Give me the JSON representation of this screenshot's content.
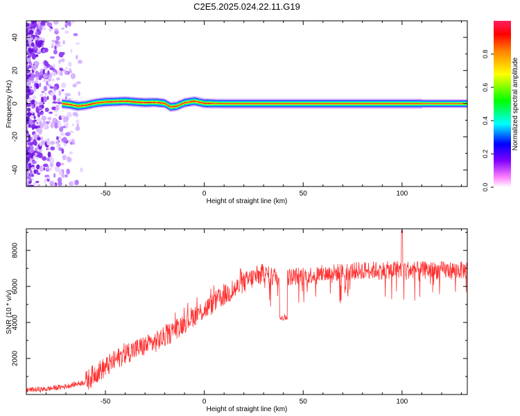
{
  "figure": {
    "title": "C2E5.2025.024.22.11.G19"
  },
  "chart_data": [
    {
      "type": "heatmap",
      "xlabel": "Height of straight line (km)",
      "ylabel": "Frequency (Hz)",
      "xlim": [
        -90,
        133
      ],
      "ylim": [
        -50,
        50
      ],
      "x_ticks": [
        -50,
        0,
        50,
        100
      ],
      "y_ticks": [
        -40,
        -20,
        0,
        20,
        40
      ],
      "x_tick_labels": [
        "-50",
        "0",
        "50",
        "100"
      ],
      "y_tick_labels": [
        "-40",
        "-20",
        "0",
        "20",
        "40"
      ],
      "colorbar": {
        "label": "Normalized spectral amplitude",
        "range": [
          0.0,
          1.0
        ],
        "ticks": [
          0.0,
          0.2,
          0.4,
          0.6,
          0.8
        ],
        "tick_labels": [
          "0.0",
          "0.2",
          "0.4",
          "0.6",
          "0.8"
        ],
        "colors": [
          "#ffffff",
          "#ff00ff",
          "#0000ff",
          "#00ffff",
          "#00ff00",
          "#ffff00",
          "#ff0000",
          "#ff0000"
        ]
      },
      "noise_region_x": [
        -90,
        -62
      ],
      "band_center_hz": [
        [
          -72,
          0
        ],
        [
          -68,
          -0.5
        ],
        [
          -64,
          -1.5
        ],
        [
          -60,
          -1
        ],
        [
          -55,
          0.3
        ],
        [
          -50,
          1
        ],
        [
          -45,
          1.2
        ],
        [
          -40,
          1.5
        ],
        [
          -35,
          1
        ],
        [
          -30,
          0.6
        ],
        [
          -25,
          0.8
        ],
        [
          -20,
          0.2
        ],
        [
          -17,
          -2
        ],
        [
          -14,
          -1.5
        ],
        [
          -10,
          0.5
        ],
        [
          -5,
          1.5
        ],
        [
          0,
          0.2
        ],
        [
          10,
          0
        ],
        [
          50,
          0
        ],
        [
          133,
          0
        ]
      ]
    },
    {
      "type": "line",
      "xlabel": "Height of straight line (km)",
      "ylabel": "SNR (10 * v/v)",
      "xlim": [
        -90,
        133
      ],
      "ylim": [
        0,
        9200
      ],
      "x_ticks": [
        -50,
        0,
        50,
        100
      ],
      "y_ticks": [
        2000,
        4000,
        6000,
        8000
      ],
      "x_tick_labels": [
        "-50",
        "0",
        "50",
        "100"
      ],
      "y_tick_labels": [
        "2000",
        "4000",
        "6000",
        "8000"
      ],
      "series": [
        {
          "color": "#ff3030",
          "trend": {
            "x": [
              -90,
              -80,
              -70,
              -60,
              -55,
              -50,
              -45,
              -40,
              -35,
              -30,
              -25,
              -20,
              -15,
              -10,
              -5,
              0,
              5,
              10,
              15,
              20,
              25,
              30,
              40,
              50,
              60,
              70,
              80,
              90,
              95,
              100,
              105,
              110,
              115,
              120,
              125,
              133
            ],
            "y": [
              250,
              300,
              450,
              700,
              1200,
              1500,
              1900,
              2300,
              2500,
              2700,
              2900,
              3200,
              3600,
              4000,
              4400,
              4700,
              5100,
              5500,
              5800,
              6200,
              6500,
              6700,
              6500,
              6600,
              6700,
              6800,
              6900,
              6900,
              6900,
              7000,
              6900,
              6900,
              6900,
              6900,
              6900,
              6900
            ]
          },
          "spike": {
            "x": 100,
            "y": 9100
          },
          "dip": {
            "x": 40,
            "y": 4300
          }
        }
      ]
    }
  ]
}
